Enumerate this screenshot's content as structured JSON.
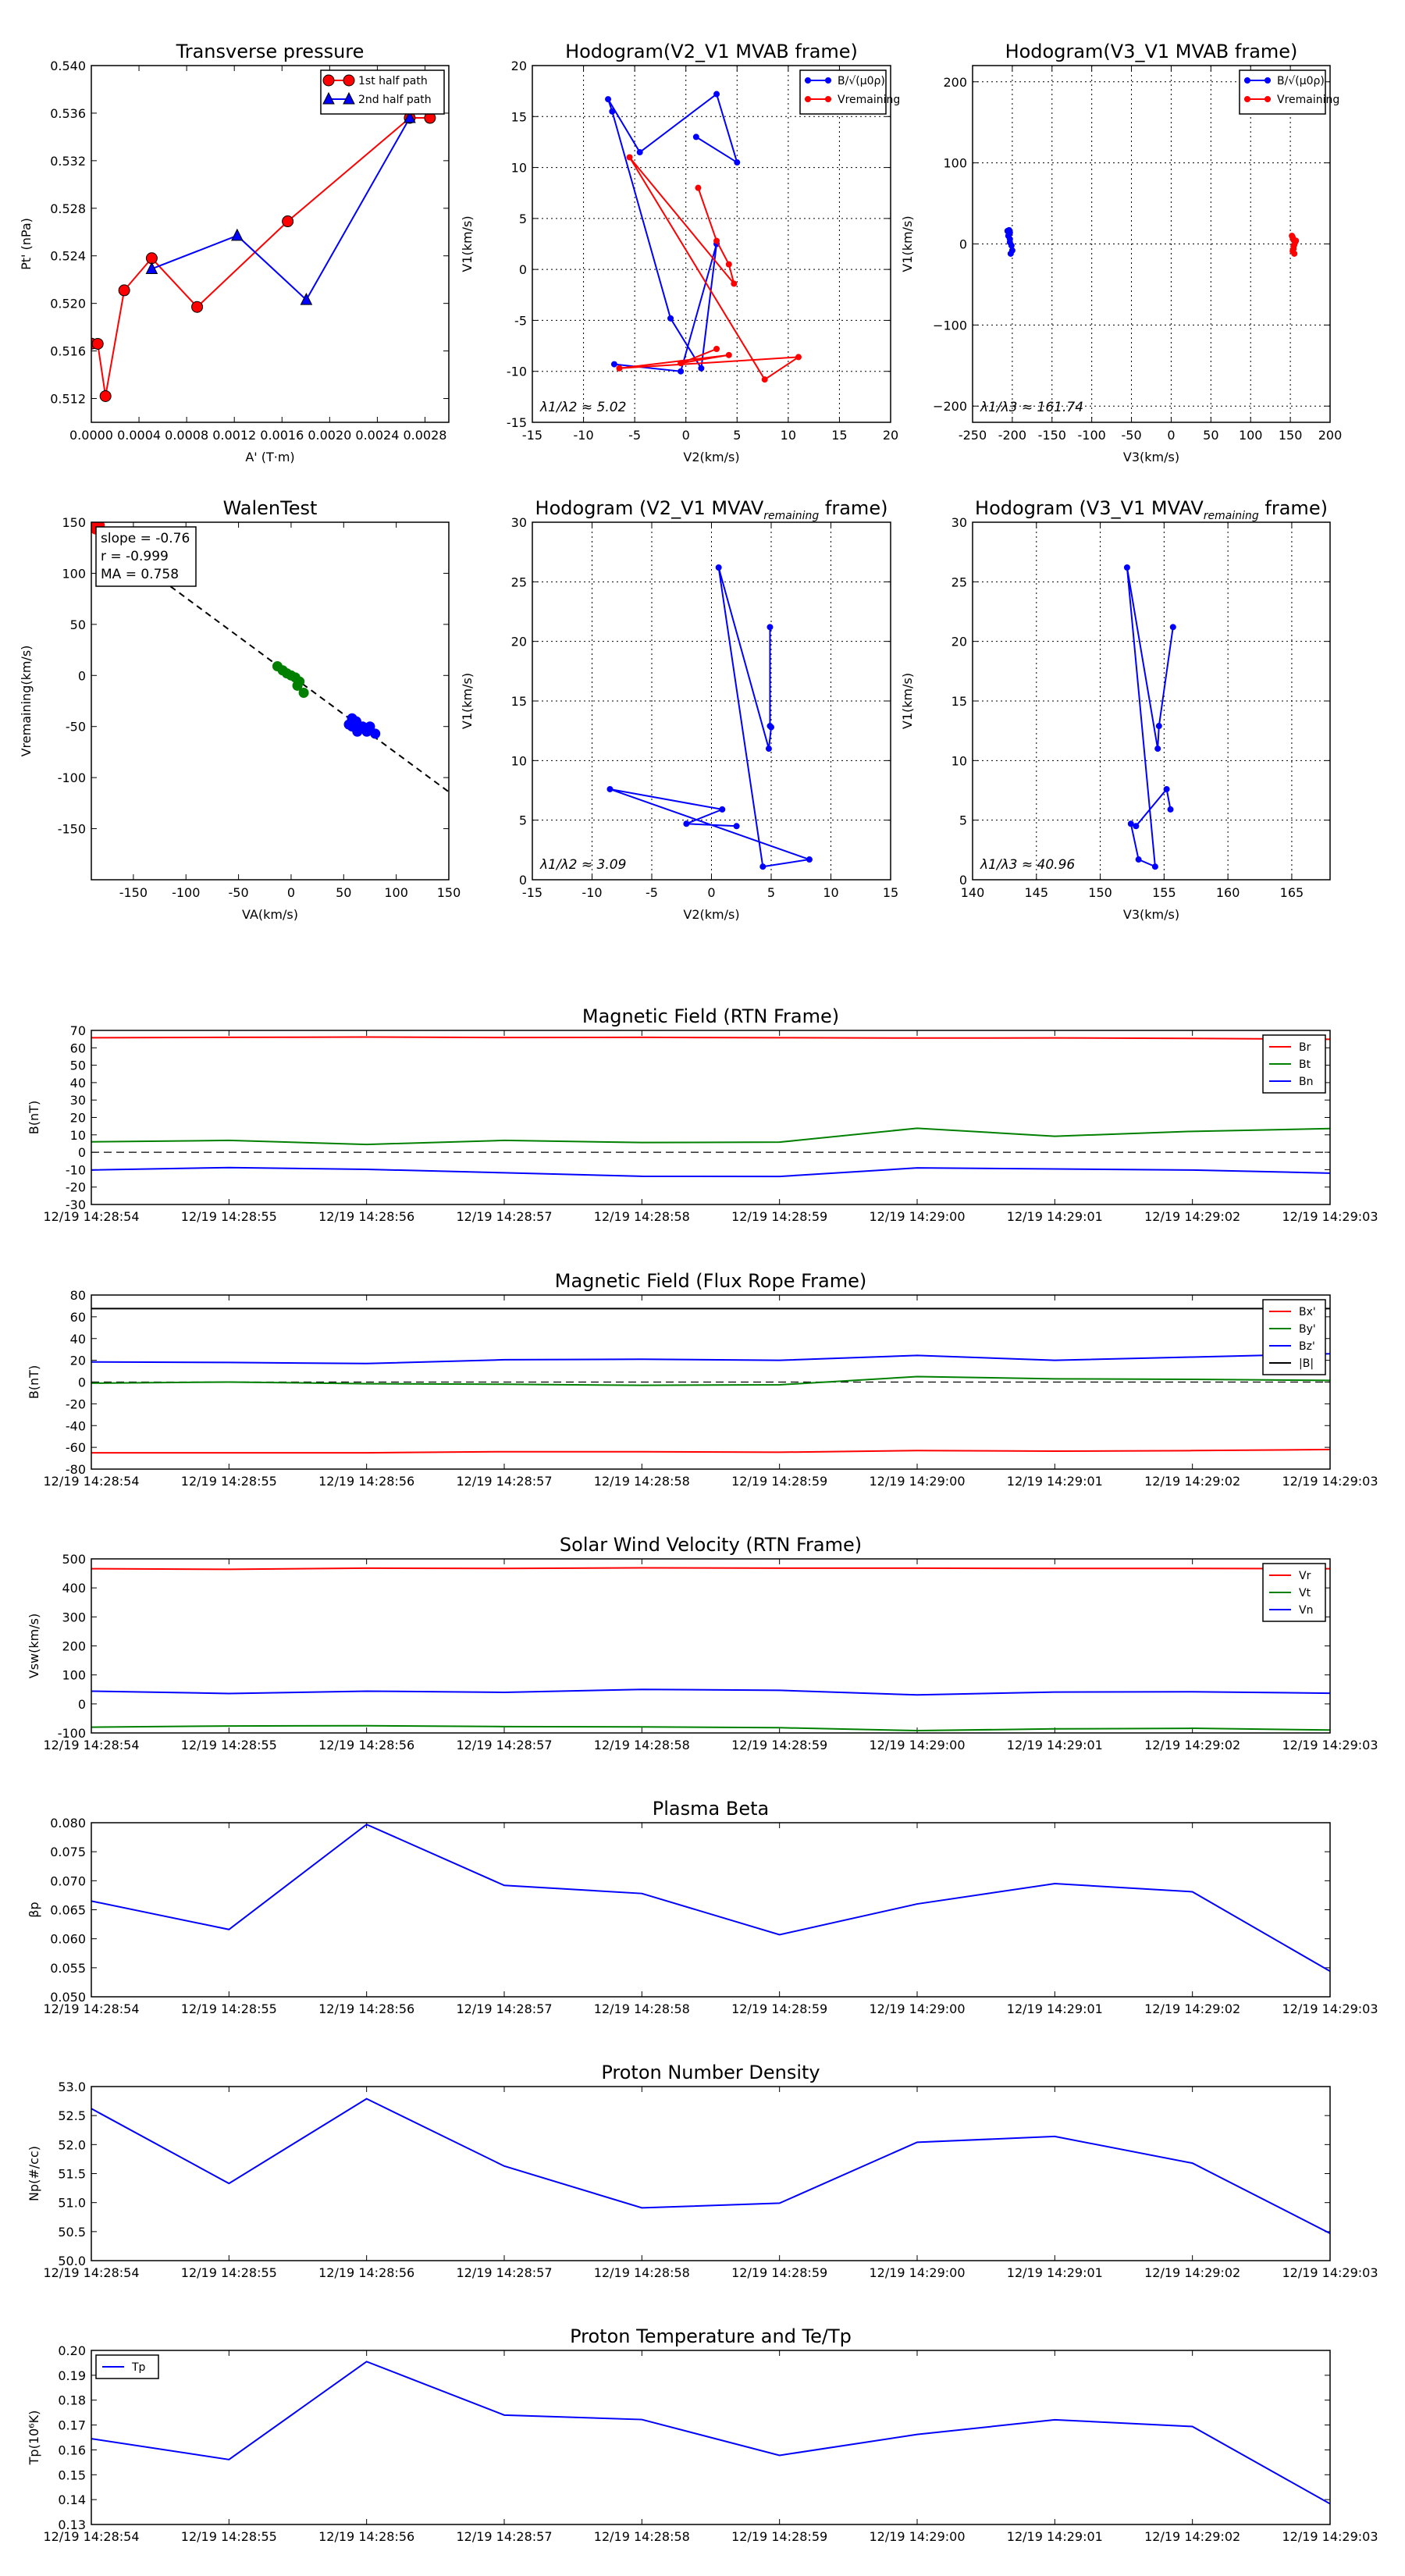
{
  "colors": {
    "red": "#ff0000",
    "blue": "#0000ff",
    "green": "#008000",
    "black": "#000000",
    "grid": "#000000"
  },
  "chart_data": [
    {
      "id": "transverse-pressure",
      "type": "line",
      "title": "Transverse pressure",
      "xlabel": "A' (T·m)",
      "ylabel": "Pt' (nPa)",
      "xlim": [
        0,
        0.003
      ],
      "ylim": [
        0.51,
        0.54
      ],
      "xticks": [
        0,
        0.0004,
        0.0008,
        0.0012,
        0.0016,
        0.002,
        0.0024,
        0.0028
      ],
      "xticklabels": [
        "0.0000",
        "0.0004",
        "0.0008",
        "0.0012",
        "0.0016",
        "0.0020",
        "0.0024",
        "0.0028"
      ],
      "yticks": [
        0.512,
        0.516,
        0.52,
        0.524,
        0.528,
        0.532,
        0.536,
        0.54
      ],
      "yticklabels": [
        "0.512",
        "0.516",
        "0.520",
        "0.524",
        "0.528",
        "0.532",
        "0.536",
        "0.540"
      ],
      "grid": false,
      "legend": {
        "position": "top-right",
        "entries": [
          "1st half path",
          "2nd half path"
        ]
      },
      "series": [
        {
          "name": "1st half path",
          "color": "#ff0000",
          "marker": "circle",
          "x": [
            0.0,
            5.37e-05,
            0.000119,
            0.000276,
            0.000507,
            0.000888,
            0.001648,
            0.002672,
            0.002842
          ],
          "y": [
            0.51661,
            0.5166,
            0.5122,
            0.5211,
            0.5238,
            0.5197,
            0.5269,
            0.5356,
            0.5356
          ]
        },
        {
          "name": "2nd half path",
          "color": "#0000ff",
          "marker": "triangle",
          "x": [
            0.000507,
            0.001224,
            0.001804,
            0.002672
          ],
          "y": [
            0.5229,
            0.5257,
            0.5203,
            0.5356
          ]
        }
      ]
    },
    {
      "id": "hodogram-v2v1-mvab",
      "type": "line",
      "title": "Hodogram(V2_V1 MVAB frame)",
      "xlabel": "V2(km/s)",
      "ylabel": "V1(km/s)",
      "xlim": [
        -15,
        20
      ],
      "ylim": [
        -15,
        20
      ],
      "xticks": [
        -15,
        -10,
        -5,
        0,
        5,
        10,
        15,
        20
      ],
      "yticks": [
        -15,
        -10,
        -5,
        0,
        5,
        10,
        15,
        20
      ],
      "grid": true,
      "annotation": "λ1/λ2 ≈ 5.02",
      "legend": {
        "position": "top-right",
        "entries": [
          "B/√(μ0ρ)",
          "Vremaining"
        ]
      },
      "series": [
        {
          "name": "B/√(μ0ρ)",
          "color": "#0000ff",
          "x": [
            1.0,
            5.0,
            3.0,
            -4.5,
            -7.6,
            -7.2,
            -1.5,
            1.5,
            3.0,
            -0.5,
            -7.0
          ],
          "y": [
            13.0,
            10.5,
            17.2,
            11.5,
            16.7,
            15.5,
            -4.8,
            -9.7,
            2.5,
            -10.0,
            -9.3
          ]
        },
        {
          "name": "Vremaining",
          "color": "#ff0000",
          "x": [
            1.2,
            3.0,
            4.2,
            4.7,
            -5.5,
            7.7,
            11.0,
            -6.5,
            4.2,
            -0.5,
            3.0
          ],
          "y": [
            8.0,
            2.8,
            0.5,
            -1.4,
            11.0,
            -10.8,
            -8.6,
            -9.7,
            -8.4,
            -9.2,
            -7.8
          ]
        }
      ]
    },
    {
      "id": "hodogram-v3v1-mvab",
      "type": "scatter",
      "title": "Hodogram(V3_V1 MVAB frame)",
      "xlabel": "V3(km/s)",
      "ylabel": "V1(km/s)",
      "xlim": [
        -250,
        200
      ],
      "ylim": [
        -220,
        220
      ],
      "xticks": [
        -250,
        -200,
        -150,
        -100,
        -50,
        0,
        50,
        100,
        150,
        200
      ],
      "yticks": [
        -200,
        -100,
        0,
        100,
        200
      ],
      "yticklabels": [
        "−200",
        "−100",
        "0",
        "100",
        "200"
      ],
      "grid": true,
      "annotation": "λ1/λ3 ≈ 161.74",
      "legend": {
        "position": "top-right",
        "entries": [
          "B/√(μ0ρ)",
          "Vremaining"
        ]
      },
      "series": [
        {
          "name": "B/√(μ0ρ)",
          "color": "#0000ff",
          "x": [
            -206,
            -203,
            -203,
            -200,
            -202,
            -204,
            -205,
            -201,
            -203,
            -204
          ],
          "y": [
            16,
            14,
            6,
            -8,
            -12,
            17,
            10,
            -2,
            2,
            12
          ]
        },
        {
          "name": "Vremaining",
          "color": "#ff0000",
          "x": [
            153,
            156,
            154,
            155,
            152,
            154,
            157,
            153,
            155,
            154
          ],
          "y": [
            8,
            2,
            -3,
            -12,
            10,
            -6,
            4,
            -9,
            -1,
            5
          ]
        }
      ]
    },
    {
      "id": "walen-test",
      "type": "scatter",
      "title": "WalenTest",
      "xlabel": "VA(km/s)",
      "ylabel": "Vremaining(km/s)",
      "xlim": [
        -190,
        150
      ],
      "ylim": [
        -200,
        150
      ],
      "xticks": [
        -150,
        -100,
        -50,
        0,
        50,
        100,
        150
      ],
      "yticks": [
        -150,
        -100,
        -50,
        0,
        50,
        100,
        150
      ],
      "grid": false,
      "annotation_box": [
        "slope = -0.76",
        "r = -0.999",
        "MA = 0.758"
      ],
      "fit_line": {
        "x": [
          -190,
          150
        ],
        "y": [
          144.4,
          -114
        ]
      },
      "series": [
        {
          "name": "red",
          "color": "#ff0000",
          "x": [
            -188,
            -184,
            -186,
            -182
          ],
          "y": [
            145,
            146,
            143,
            147
          ]
        },
        {
          "name": "green",
          "color": "#008000",
          "x": [
            -13,
            -8,
            -4,
            0,
            4,
            8,
            12,
            6
          ],
          "y": [
            9,
            5,
            2,
            0,
            -2,
            -6,
            -17,
            -10
          ]
        },
        {
          "name": "blue",
          "color": "#0000ff",
          "x": [
            55,
            58,
            60,
            62,
            65,
            68,
            72,
            75,
            80,
            63,
            70,
            58
          ],
          "y": [
            -48,
            -42,
            -50,
            -45,
            -52,
            -50,
            -55,
            -50,
            -57,
            -55,
            -52,
            -50
          ]
        }
      ]
    },
    {
      "id": "hodogram-v2v1-mvav",
      "type": "line",
      "title": "Hodogram (V2_V1 MVAV",
      "title_sub": "remaining",
      "title_end": " frame)",
      "xlabel": "V2(km/s)",
      "ylabel": "V1(km/s)",
      "xlim": [
        -15,
        15
      ],
      "ylim": [
        0,
        30
      ],
      "xticks": [
        -15,
        -10,
        -5,
        0,
        5,
        10,
        15
      ],
      "yticks": [
        0,
        5,
        10,
        15,
        20,
        25,
        30
      ],
      "grid": true,
      "annotation": "λ1/λ2 ≈ 3.09",
      "series": [
        {
          "name": "Vremaining",
          "color": "#0000ff",
          "x": [
            4.9,
            4.9,
            5.0,
            4.8,
            0.6,
            4.3,
            8.2,
            -8.5,
            0.9,
            -2.1,
            2.1
          ],
          "y": [
            21.2,
            12.9,
            12.8,
            11.0,
            26.2,
            1.1,
            1.7,
            7.6,
            5.9,
            4.7,
            4.5
          ]
        }
      ]
    },
    {
      "id": "hodogram-v3v1-mvav",
      "type": "line",
      "title": "Hodogram (V3_V1 MVAV",
      "title_sub": "remaining",
      "title_end": " frame)",
      "xlabel": "V3(km/s)",
      "ylabel": "V1(km/s)",
      "xlim": [
        140,
        168
      ],
      "ylim": [
        0,
        30
      ],
      "xticks": [
        140,
        145,
        150,
        155,
        160,
        165
      ],
      "yticks": [
        0,
        5,
        10,
        15,
        20,
        25,
        30
      ],
      "grid": true,
      "annotation": "λ1/λ3 ≈ 40.96",
      "series": [
        {
          "name": "Vremaining",
          "color": "#0000ff",
          "x": [
            155.7,
            154.6,
            154.5,
            152.1,
            154.3,
            153.0,
            152.4,
            152.8,
            155.2,
            155.5
          ],
          "y": [
            21.2,
            12.9,
            11.0,
            26.2,
            1.1,
            1.7,
            4.7,
            4.5,
            7.6,
            5.9
          ]
        }
      ]
    },
    {
      "id": "magnetic-field-rtn",
      "type": "line",
      "title": "Magnetic Field (RTN Frame)",
      "ylabel": "B(nT)",
      "ylim": [
        -30,
        70
      ],
      "yticks": [
        -30,
        -20,
        -10,
        0,
        10,
        20,
        30,
        40,
        50,
        60,
        70
      ],
      "categories": [
        "12/19 14:28:54",
        "12/19 14:28:55",
        "12/19 14:28:56",
        "12/19 14:28:57",
        "12/19 14:28:58",
        "12/19 14:28:59",
        "12/19 14:29:00",
        "12/19 14:29:01",
        "12/19 14:29:02",
        "12/19 14:29:03"
      ],
      "zero_line": true,
      "legend": {
        "position": "top-right",
        "entries": [
          "Br",
          "Bt",
          "Bn"
        ]
      },
      "series": [
        {
          "name": "Br",
          "color": "#ff0000",
          "values": [
            65.8,
            66.0,
            66.2,
            65.9,
            66.0,
            65.8,
            65.6,
            65.7,
            65.4,
            64.9
          ]
        },
        {
          "name": "Bt",
          "color": "#008000",
          "values": [
            6.0,
            6.8,
            4.5,
            6.8,
            5.6,
            5.8,
            13.8,
            9.2,
            12.0,
            13.6
          ]
        },
        {
          "name": "Bn",
          "color": "#0000ff",
          "values": [
            -10.2,
            -8.8,
            -9.8,
            -11.8,
            -13.8,
            -13.9,
            -9.0,
            -9.6,
            -10.2,
            -12.0
          ]
        }
      ]
    },
    {
      "id": "magnetic-field-flux-rope",
      "type": "line",
      "title": "Magnetic Field (Flux Rope Frame)",
      "ylabel": "B(nT)",
      "ylim": [
        -80,
        80
      ],
      "yticks": [
        -80,
        -60,
        -40,
        -20,
        0,
        20,
        40,
        60,
        80
      ],
      "categories": [
        "12/19 14:28:54",
        "12/19 14:28:55",
        "12/19 14:28:56",
        "12/19 14:28:57",
        "12/19 14:28:58",
        "12/19 14:28:59",
        "12/19 14:29:00",
        "12/19 14:29:01",
        "12/19 14:29:02",
        "12/19 14:29:03"
      ],
      "zero_line": true,
      "legend": {
        "position": "top-right",
        "entries": [
          "Bx'",
          "By'",
          "Bz'",
          "|B|"
        ]
      },
      "series": [
        {
          "name": "Bx'",
          "color": "#ff0000",
          "values": [
            -65,
            -65,
            -65,
            -64,
            -64,
            -64.5,
            -63,
            -63.5,
            -63,
            -62
          ]
        },
        {
          "name": "By'",
          "color": "#008000",
          "values": [
            -1,
            0,
            -1.5,
            -2,
            -3,
            -2.5,
            5,
            3,
            2.5,
            1.5
          ]
        },
        {
          "name": "Bz'",
          "color": "#0000ff",
          "values": [
            18.5,
            18,
            17,
            20.5,
            21,
            20,
            24.5,
            20,
            23,
            26
          ]
        },
        {
          "name": "|B|",
          "color": "#000000",
          "values": [
            67.5,
            67.5,
            67.5,
            67.5,
            67.5,
            67.5,
            67.5,
            67.5,
            67.5,
            67.5
          ]
        }
      ]
    },
    {
      "id": "solar-wind-velocity",
      "type": "line",
      "title": "Solar Wind Velocity (RTN Frame)",
      "ylabel": "Vsw(km/s)",
      "ylim": [
        -100,
        500
      ],
      "yticks": [
        -100,
        0,
        100,
        200,
        300,
        400,
        500
      ],
      "categories": [
        "12/19 14:28:54",
        "12/19 14:28:55",
        "12/19 14:28:56",
        "12/19 14:28:57",
        "12/19 14:28:58",
        "12/19 14:28:59",
        "12/19 14:29:00",
        "12/19 14:29:01",
        "12/19 14:29:02",
        "12/19 14:29:03"
      ],
      "legend": {
        "position": "top-right",
        "entries": [
          "Vr",
          "Vt",
          "Vn"
        ]
      },
      "series": [
        {
          "name": "Vr",
          "color": "#ff0000",
          "values": [
            466,
            464,
            468,
            467,
            469,
            468,
            468,
            467,
            467,
            466
          ]
        },
        {
          "name": "Vt",
          "color": "#008000",
          "values": [
            -80,
            -76,
            -75,
            -78,
            -79,
            -82,
            -92,
            -86,
            -84,
            -90
          ]
        },
        {
          "name": "Vn",
          "color": "#0000ff",
          "values": [
            44,
            36,
            44,
            40,
            50,
            47,
            31,
            41,
            42,
            37
          ]
        }
      ]
    },
    {
      "id": "plasma-beta",
      "type": "line",
      "title": "Plasma Beta",
      "ylabel": "βp",
      "ylim": [
        0.05,
        0.08
      ],
      "yticks": [
        0.05,
        0.055,
        0.06,
        0.065,
        0.07,
        0.075,
        0.08
      ],
      "yticklabels": [
        "0.050",
        "0.055",
        "0.060",
        "0.065",
        "0.070",
        "0.075",
        "0.080"
      ],
      "categories": [
        "12/19 14:28:54",
        "12/19 14:28:55",
        "12/19 14:28:56",
        "12/19 14:28:57",
        "12/19 14:28:58",
        "12/19 14:28:59",
        "12/19 14:29:00",
        "12/19 14:29:01",
        "12/19 14:29:02",
        "12/19 14:29:03"
      ],
      "series": [
        {
          "name": "beta",
          "color": "#0000ff",
          "values": [
            0.0665,
            0.0616,
            0.0797,
            0.0692,
            0.0678,
            0.0607,
            0.066,
            0.0695,
            0.0681,
            0.0544
          ]
        }
      ]
    },
    {
      "id": "proton-number-density",
      "type": "line",
      "title": "Proton Number Density",
      "ylabel": "Np(#/cc)",
      "ylim": [
        50,
        53
      ],
      "yticks": [
        50,
        50.5,
        51,
        51.5,
        52,
        52.5,
        53
      ],
      "yticklabels": [
        "50.0",
        "50.5",
        "51.0",
        "51.5",
        "52.0",
        "52.5",
        "53.0"
      ],
      "categories": [
        "12/19 14:28:54",
        "12/19 14:28:55",
        "12/19 14:28:56",
        "12/19 14:28:57",
        "12/19 14:28:58",
        "12/19 14:28:59",
        "12/19 14:29:00",
        "12/19 14:29:01",
        "12/19 14:29:02",
        "12/19 14:29:03"
      ],
      "series": [
        {
          "name": "Np",
          "color": "#0000ff",
          "values": [
            52.62,
            51.33,
            52.79,
            51.63,
            50.91,
            50.99,
            52.04,
            52.14,
            51.68,
            50.47
          ]
        }
      ]
    },
    {
      "id": "proton-temperature",
      "type": "line",
      "title": "Proton Temperature and Te/Tp",
      "ylabel": "Tp(10⁶K)",
      "ylim": [
        0.13,
        0.2
      ],
      "yticks": [
        0.13,
        0.14,
        0.15,
        0.16,
        0.17,
        0.18,
        0.19,
        0.2
      ],
      "yticklabels": [
        "0.13",
        "0.14",
        "0.15",
        "0.16",
        "0.17",
        "0.18",
        "0.19",
        "0.20"
      ],
      "categories": [
        "12/19 14:28:54",
        "12/19 14:28:55",
        "12/19 14:28:56",
        "12/19 14:28:57",
        "12/19 14:28:58",
        "12/19 14:28:59",
        "12/19 14:29:00",
        "12/19 14:29:01",
        "12/19 14:29:02",
        "12/19 14:29:03"
      ],
      "legend": {
        "position": "top-left",
        "entries": [
          "Tp"
        ]
      },
      "series": [
        {
          "name": "Tp",
          "color": "#0000ff",
          "values": [
            0.1645,
            0.1561,
            0.1955,
            0.174,
            0.1722,
            0.1578,
            0.1662,
            0.1721,
            0.1694,
            0.1383
          ]
        }
      ]
    }
  ]
}
